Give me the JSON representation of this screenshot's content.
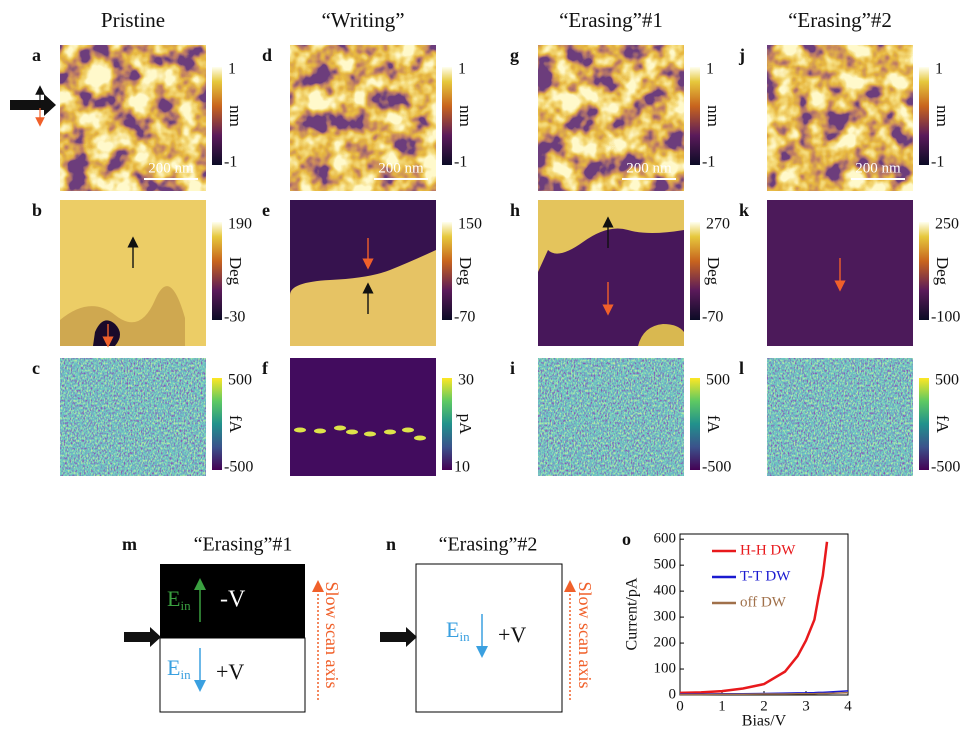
{
  "header": {
    "columns": [
      "Pristine",
      "“Writing”",
      "“Erasing”#1",
      "“Erasing”#2"
    ]
  },
  "panels": [
    {
      "label": "a",
      "bar_top": 1,
      "unit": "nm",
      "bar_bottom": -1,
      "scale": "200 nm"
    },
    {
      "label": "b",
      "bar_top": 190,
      "unit": "Deg",
      "bar_bottom": -30
    },
    {
      "label": "c",
      "bar_top": 500,
      "unit": "fA",
      "bar_bottom": -500
    },
    {
      "label": "d",
      "bar_top": 1,
      "unit": "nm",
      "bar_bottom": -1,
      "scale": "200 nm"
    },
    {
      "label": "e",
      "bar_top": 150,
      "unit": "Deg",
      "bar_bottom": -70
    },
    {
      "label": "f",
      "bar_top": 30,
      "unit": "pA",
      "bar_bottom": 10
    },
    {
      "label": "g",
      "bar_top": 1,
      "unit": "nm",
      "bar_bottom": -1,
      "scale": "200 nm"
    },
    {
      "label": "h",
      "bar_top": 270,
      "unit": "Deg",
      "bar_bottom": -70
    },
    {
      "label": "i",
      "bar_top": 500,
      "unit": "fA",
      "bar_bottom": -500
    },
    {
      "label": "j",
      "bar_top": 1,
      "unit": "nm",
      "bar_bottom": -1,
      "scale": "200 nm"
    },
    {
      "label": "k",
      "bar_top": 250,
      "unit": "Deg",
      "bar_bottom": -100
    },
    {
      "label": "l",
      "bar_top": 500,
      "unit": "fA",
      "bar_bottom": -500
    }
  ],
  "schematics": {
    "m": {
      "label": "m",
      "title": "“Erasing”#1",
      "top_e": "E",
      "top_sub": "in",
      "top_bias": "-V",
      "bottom_e": "E",
      "bottom_sub": "in",
      "bottom_bias": "+V",
      "axis": "Slow scan axis"
    },
    "n": {
      "label": "n",
      "title": "“Erasing”#2",
      "e": "E",
      "sub": "in",
      "bias": "+V",
      "axis": "Slow scan axis"
    }
  },
  "chart_data": {
    "type": "line",
    "label": "o",
    "xlabel": "Bias/V",
    "ylabel": "Current/pA",
    "x": [
      0,
      0.5,
      1,
      1.5,
      2,
      2.5,
      2.8,
      3,
      3.2,
      3.3,
      3.4,
      3.5,
      4
    ],
    "series": [
      {
        "name": "H-H DW",
        "color": "#e8191c",
        "values": [
          8,
          10,
          15,
          25,
          42,
          90,
          150,
          210,
          290,
          380,
          460,
          590,
          null
        ]
      },
      {
        "name": "T-T DW",
        "color": "#1a1ad0",
        "values": [
          4,
          4,
          5,
          5,
          6,
          7,
          8,
          8,
          9,
          10,
          10,
          11,
          16
        ]
      },
      {
        "name": "off DW",
        "color": "#a0704a",
        "values": [
          2,
          2,
          3,
          3,
          4,
          4,
          5,
          5,
          5,
          6,
          6,
          6,
          9
        ]
      }
    ],
    "xlim": [
      0,
      4
    ],
    "xticks": [
      0,
      1,
      2,
      3,
      4
    ],
    "ylim": [
      0,
      620
    ],
    "yticks": [
      0,
      100,
      200,
      300,
      400,
      500,
      600
    ]
  }
}
